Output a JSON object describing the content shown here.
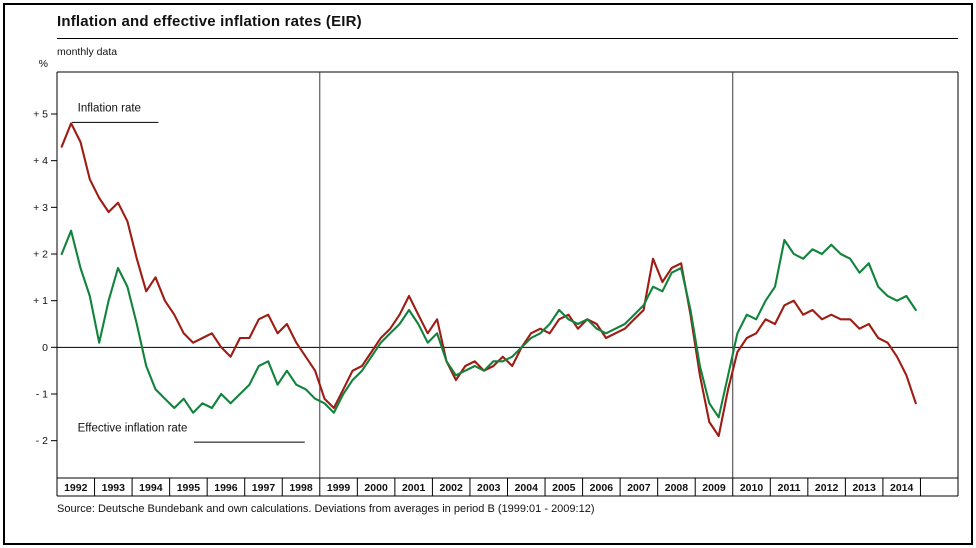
{
  "footer": {
    "source": "Source: Deutsche Bundebank and own calculations. Deviations from averages in period B (1999:01 - 2009:12)"
  },
  "chart_data": {
    "type": "line",
    "title": "Inflation and effective inflation rates (EIR)",
    "subtitle": "monthly data",
    "ylabel": "%",
    "xlim": [
      1992,
      2016
    ],
    "ylim": [
      -2.8,
      5.9
    ],
    "grid": "zero-line-only",
    "legend_position": "annotations-on-plot",
    "y_ticks": [
      {
        "value": 5,
        "label": "+ 5"
      },
      {
        "value": 4,
        "label": "+ 4"
      },
      {
        "value": 3,
        "label": "+ 3"
      },
      {
        "value": 2,
        "label": "+ 2"
      },
      {
        "value": 1,
        "label": "+ 1"
      },
      {
        "value": 0,
        "label": "0"
      },
      {
        "value": -1,
        "label": "- 1"
      },
      {
        "value": -2,
        "label": "- 2"
      }
    ],
    "x_year_labels": [
      "1992",
      "1993",
      "1994",
      "1995",
      "1996",
      "1997",
      "1998",
      "1999",
      "2000",
      "2001",
      "2002",
      "2003",
      "2004",
      "2005",
      "2006",
      "2007",
      "2008",
      "2009",
      "2010",
      "2011",
      "2012",
      "2013",
      "2014"
    ],
    "period_dividers": [
      1999,
      2010
    ],
    "x0": 1992.125,
    "x_step": 0.25,
    "series": [
      {
        "name": "Inflation rate",
        "color": "#9e1c13",
        "label_pos": {
          "x": 1992.55,
          "y": 5.05
        },
        "leader": [
          1992.4,
          4.82,
          1994.7,
          4.82
        ],
        "values": [
          4.3,
          4.8,
          4.4,
          3.6,
          3.2,
          2.9,
          3.1,
          2.7,
          1.9,
          1.2,
          1.5,
          1.0,
          0.7,
          0.3,
          0.1,
          0.2,
          0.3,
          0.0,
          -0.2,
          0.2,
          0.2,
          0.6,
          0.7,
          0.3,
          0.5,
          0.1,
          -0.2,
          -0.5,
          -1.1,
          -1.3,
          -0.9,
          -0.5,
          -0.4,
          -0.1,
          0.2,
          0.4,
          0.7,
          1.1,
          0.7,
          0.3,
          0.6,
          -0.3,
          -0.7,
          -0.4,
          -0.3,
          -0.5,
          -0.4,
          -0.2,
          -0.4,
          0.0,
          0.3,
          0.4,
          0.3,
          0.6,
          0.7,
          0.4,
          0.6,
          0.5,
          0.2,
          0.3,
          0.4,
          0.6,
          0.8,
          1.9,
          1.4,
          1.7,
          1.8,
          0.7,
          -0.6,
          -1.6,
          -1.9,
          -0.9,
          -0.1,
          0.2,
          0.3,
          0.6,
          0.5,
          0.9,
          1.0,
          0.7,
          0.8,
          0.6,
          0.7,
          0.6,
          0.6,
          0.4,
          0.5,
          0.2,
          0.1,
          -0.2,
          -0.6,
          -1.2
        ]
      },
      {
        "name": "Effective inflation rate",
        "color": "#12833c",
        "label_pos": {
          "x": 1992.55,
          "y": -1.8
        },
        "leader": [
          1995.65,
          -2.03,
          1998.6,
          -2.03
        ],
        "values": [
          2.0,
          2.5,
          1.7,
          1.1,
          0.1,
          1.0,
          1.7,
          1.3,
          0.5,
          -0.4,
          -0.9,
          -1.1,
          -1.3,
          -1.1,
          -1.4,
          -1.2,
          -1.3,
          -1.0,
          -1.2,
          -1.0,
          -0.8,
          -0.4,
          -0.3,
          -0.8,
          -0.5,
          -0.8,
          -0.9,
          -1.1,
          -1.2,
          -1.4,
          -1.0,
          -0.7,
          -0.5,
          -0.2,
          0.1,
          0.3,
          0.5,
          0.8,
          0.5,
          0.1,
          0.3,
          -0.3,
          -0.6,
          -0.5,
          -0.4,
          -0.5,
          -0.3,
          -0.3,
          -0.2,
          0.0,
          0.2,
          0.3,
          0.5,
          0.8,
          0.6,
          0.5,
          0.6,
          0.4,
          0.3,
          0.4,
          0.5,
          0.7,
          0.9,
          1.3,
          1.2,
          1.6,
          1.7,
          0.8,
          -0.4,
          -1.2,
          -1.5,
          -0.6,
          0.3,
          0.7,
          0.6,
          1.0,
          1.3,
          2.3,
          2.0,
          1.9,
          2.1,
          2.0,
          2.2,
          2.0,
          1.9,
          1.6,
          1.8,
          1.3,
          1.1,
          1.0,
          1.1,
          0.8
        ]
      }
    ]
  }
}
